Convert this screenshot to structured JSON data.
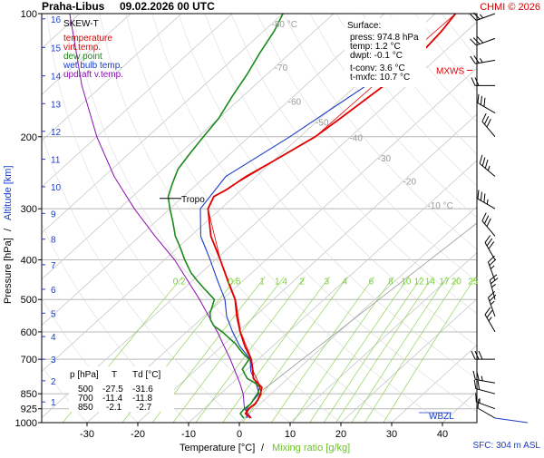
{
  "header": {
    "title": "Praha-Libus",
    "datetime": "09.02.2026 00 UTC",
    "copyright": "CHMI © 2026"
  },
  "legend": {
    "heading": "SKEW-T",
    "items": [
      {
        "label": "temperature",
        "color": "#e00000"
      },
      {
        "label": "virt.temp.",
        "color": "#e00000"
      },
      {
        "label": "dew point",
        "color": "#1a8a1a"
      },
      {
        "label": "wet bulb temp.",
        "color": "#1a3cc8"
      },
      {
        "label": "updraft v.temp.",
        "color": "#8a10b0"
      }
    ]
  },
  "surface_box": {
    "heading": "Surface:",
    "press": "press: 974.8 hPa",
    "temp": "temp: 1.2 °C",
    "dwpt": "dwpt: -0.1 °C",
    "tconv": "t-conv: 3.6 °C",
    "tmxfc": "t-mxfc: 10.7 °C"
  },
  "table": {
    "headers": [
      "p [hPa]",
      "T",
      "Td [°C]"
    ],
    "rows": [
      [
        "500",
        "-27.5",
        "-31.6"
      ],
      [
        "700",
        "-11.4",
        "-11.8"
      ],
      [
        "850",
        "-2.1",
        "-2.7"
      ]
    ]
  },
  "labels": {
    "tropo": "Tropo",
    "mxws": "MXWS",
    "wbzl": "WBZL",
    "sfc": "SFC: 304 m ASL",
    "y_axis_title_pressure": "Pressure [hPa]",
    "y_axis_title_altitude": "Altitude [km]",
    "y_axis_sep": "/",
    "x_axis_title_temp": "Temperature [°C]",
    "x_axis_sep": "/",
    "x_axis_title_mix": "Mixing ratio [g/kg]"
  },
  "colors": {
    "temperature": "#e00000",
    "dewpoint": "#1a8a1a",
    "wetbulb": "#1a3cc8",
    "updraft": "#8a10b0",
    "isotherm": "#c8c8c8",
    "isobar": "#b8b8b8",
    "mixing": "#8fd35a",
    "altitude": "#1a3cc8"
  },
  "chart_data": {
    "type": "line",
    "title": "SKEW-T",
    "xlabel": "Temperature [°C]",
    "ylabel": "Pressure [hPa]",
    "xlim": [
      -37,
      40
    ],
    "ylim": [
      1000,
      100
    ],
    "log_y": true,
    "x_ticks": [
      -30,
      -20,
      -10,
      0,
      10,
      20,
      30,
      40
    ],
    "p_ticks": [
      100,
      200,
      300,
      400,
      500,
      600,
      700,
      850,
      925,
      1000
    ],
    "altitude_ticks": [
      {
        "km": 1,
        "p": 890
      },
      {
        "km": 2,
        "p": 790
      },
      {
        "km": 3,
        "p": 700
      },
      {
        "km": 4,
        "p": 616
      },
      {
        "km": 5,
        "p": 540
      },
      {
        "km": 6,
        "p": 472
      },
      {
        "km": 7,
        "p": 411
      },
      {
        "km": 8,
        "p": 356
      },
      {
        "km": 9,
        "p": 308
      },
      {
        "km": 10,
        "p": 265
      },
      {
        "km": 11,
        "p": 227
      },
      {
        "km": 12,
        "p": 194
      },
      {
        "km": 13,
        "p": 166
      },
      {
        "km": 14,
        "p": 142
      },
      {
        "km": 15,
        "p": 121
      },
      {
        "km": 16,
        "p": 103
      }
    ],
    "isotherm_labels": [
      {
        "value": "-80 °C",
        "t": -80,
        "p": 108
      },
      {
        "value": "-70",
        "t": -70,
        "p": 138
      },
      {
        "value": "-60",
        "t": -60,
        "p": 167
      },
      {
        "value": "-50",
        "t": -50,
        "p": 188
      },
      {
        "value": "-40",
        "t": -40,
        "p": 205
      },
      {
        "value": "-30",
        "t": -30,
        "p": 230
      },
      {
        "value": "-20",
        "t": -20,
        "p": 262
      },
      {
        "value": "-10 °C",
        "t": -10,
        "p": 300
      }
    ],
    "mixing_ratio_labels": [
      "0.2",
      "0.6",
      "1",
      "1.4",
      "2",
      "3",
      "4",
      "6",
      "8",
      "10",
      "12",
      "14",
      "17",
      "20",
      "25"
    ],
    "mixing_ratio_values": [
      0.2,
      0.6,
      1,
      1.4,
      2,
      3,
      4,
      6,
      8,
      10,
      12,
      14,
      17,
      20,
      25
    ],
    "series": [
      {
        "name": "temperature",
        "points": [
          [
            975,
            1.2
          ],
          [
            950,
            -0.8
          ],
          [
            925,
            -1.2
          ],
          [
            900,
            -1.0
          ],
          [
            880,
            -1.3
          ],
          [
            850,
            -2.1
          ],
          [
            820,
            -3.2
          ],
          [
            800,
            -5.0
          ],
          [
            780,
            -6.8
          ],
          [
            750,
            -8.4
          ],
          [
            700,
            -11.4
          ],
          [
            650,
            -15.5
          ],
          [
            600,
            -19.5
          ],
          [
            550,
            -23.5
          ],
          [
            500,
            -27.5
          ],
          [
            450,
            -33.0
          ],
          [
            400,
            -39.0
          ],
          [
            350,
            -46.0
          ],
          [
            300,
            -52.5
          ],
          [
            280,
            -54.0
          ],
          [
            270,
            -53.0
          ],
          [
            250,
            -52.0
          ],
          [
            230,
            -50.0
          ],
          [
            200,
            -47.0
          ],
          [
            180,
            -46.0
          ],
          [
            150,
            -44.5
          ],
          [
            130,
            -44.0
          ],
          [
            110,
            -45.0
          ],
          [
            100,
            -46.0
          ]
        ]
      },
      {
        "name": "virt.temp.",
        "points": [
          [
            975,
            1.4
          ],
          [
            950,
            -0.6
          ],
          [
            925,
            -1.0
          ],
          [
            900,
            -0.8
          ],
          [
            850,
            -1.9
          ],
          [
            800,
            -4.8
          ],
          [
            750,
            -8.3
          ],
          [
            700,
            -11.3
          ],
          [
            600,
            -19.4
          ],
          [
            500,
            -27.4
          ],
          [
            400,
            -39.0
          ],
          [
            300,
            -52.5
          ],
          [
            280,
            -54.0
          ],
          [
            200,
            -47.0
          ],
          [
            100,
            -46.0
          ]
        ]
      },
      {
        "name": "dew point",
        "points": [
          [
            975,
            -0.1
          ],
          [
            950,
            -1.8
          ],
          [
            925,
            -2.0
          ],
          [
            900,
            -1.8
          ],
          [
            880,
            -2.2
          ],
          [
            850,
            -2.7
          ],
          [
            820,
            -3.6
          ],
          [
            800,
            -5.5
          ],
          [
            780,
            -8.0
          ],
          [
            760,
            -9.5
          ],
          [
            740,
            -11.0
          ],
          [
            700,
            -11.8
          ],
          [
            680,
            -14.0
          ],
          [
            660,
            -16.0
          ],
          [
            640,
            -18.0
          ],
          [
            620,
            -20.5
          ],
          [
            600,
            -23.0
          ],
          [
            580,
            -26.0
          ],
          [
            560,
            -28.0
          ],
          [
            540,
            -29.5
          ],
          [
            520,
            -30.5
          ],
          [
            500,
            -31.6
          ],
          [
            470,
            -36.0
          ],
          [
            450,
            -39.0
          ],
          [
            430,
            -42.0
          ],
          [
            400,
            -46.0
          ],
          [
            370,
            -50.0
          ],
          [
            350,
            -53.0
          ],
          [
            320,
            -57.0
          ],
          [
            300,
            -60.0
          ],
          [
            280,
            -63.0
          ],
          [
            260,
            -65.0
          ],
          [
            240,
            -67.0
          ],
          [
            220,
            -68.0
          ],
          [
            200,
            -69.0
          ],
          [
            180,
            -70.0
          ],
          [
            160,
            -72.0
          ],
          [
            140,
            -74.0
          ],
          [
            125,
            -76.0
          ],
          [
            110,
            -78.0
          ],
          [
            100,
            -80.0
          ]
        ]
      },
      {
        "name": "wet bulb temp.",
        "points": [
          [
            975,
            0.5
          ],
          [
            925,
            -1.6
          ],
          [
            850,
            -2.4
          ],
          [
            800,
            -5.3
          ],
          [
            750,
            -8.8
          ],
          [
            700,
            -11.6
          ],
          [
            650,
            -16.5
          ],
          [
            600,
            -21.0
          ],
          [
            550,
            -25.5
          ],
          [
            500,
            -29.5
          ],
          [
            450,
            -35.0
          ],
          [
            400,
            -41.0
          ],
          [
            350,
            -48.0
          ],
          [
            300,
            -54.0
          ],
          [
            250,
            -56.0
          ],
          [
            200,
            -52.0
          ],
          [
            150,
            -48.0
          ],
          [
            130,
            -47.0
          ]
        ]
      },
      {
        "name": "updraft v.temp.",
        "points": [
          [
            975,
            1.4
          ],
          [
            925,
            -2.0
          ],
          [
            850,
            -5.5
          ],
          [
            800,
            -8.5
          ],
          [
            700,
            -15.5
          ],
          [
            600,
            -24.0
          ],
          [
            500,
            -34.5
          ],
          [
            400,
            -48.0
          ],
          [
            350,
            -57.0
          ],
          [
            300,
            -67.0
          ],
          [
            250,
            -78.0
          ],
          [
            200,
            -90.0
          ],
          [
            150,
            -104.0
          ],
          [
            100,
            -122.0
          ]
        ]
      }
    ],
    "wind_barbs": [
      {
        "p": 975,
        "dir": 300,
        "kt": 10
      },
      {
        "p": 925,
        "dir": 290,
        "kt": 15
      },
      {
        "p": 850,
        "dir": 285,
        "kt": 20
      },
      {
        "p": 800,
        "dir": 280,
        "kt": 25
      },
      {
        "p": 700,
        "dir": 270,
        "kt": 30
      },
      {
        "p": 600,
        "dir": 330,
        "kt": 25
      },
      {
        "p": 550,
        "dir": 340,
        "kt": 25
      },
      {
        "p": 500,
        "dir": 345,
        "kt": 25
      },
      {
        "p": 450,
        "dir": 340,
        "kt": 25
      },
      {
        "p": 400,
        "dir": 330,
        "kt": 30
      },
      {
        "p": 350,
        "dir": 320,
        "kt": 30
      },
      {
        "p": 300,
        "dir": 300,
        "kt": 35
      },
      {
        "p": 250,
        "dir": 310,
        "kt": 35
      },
      {
        "p": 200,
        "dir": 320,
        "kt": 30
      },
      {
        "p": 175,
        "dir": 300,
        "kt": 30
      },
      {
        "p": 150,
        "dir": 270,
        "kt": 20
      },
      {
        "p": 130,
        "dir": 260,
        "kt": 25
      },
      {
        "p": 115,
        "dir": 250,
        "kt": 30
      },
      {
        "p": 100,
        "dir": 250,
        "kt": 25
      }
    ],
    "tropopause_p": 283,
    "mxws_p": 139,
    "wbzl_p": 960,
    "surface_p": 975
  }
}
